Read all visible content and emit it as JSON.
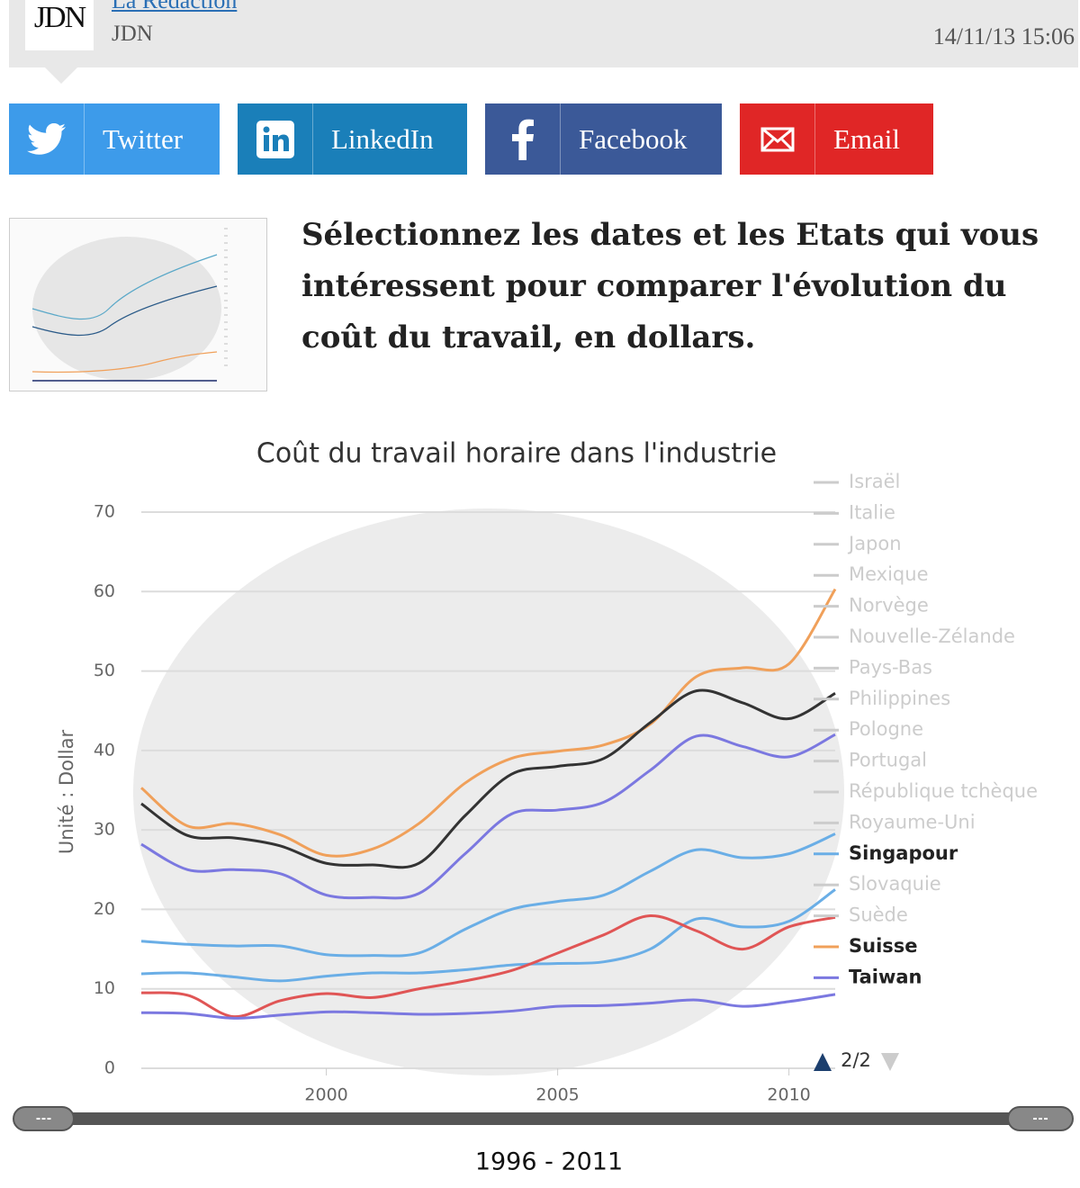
{
  "header": {
    "logo": "JDN",
    "author": "La Rédaction",
    "source": "JDN",
    "date": "14/11/13 15:06"
  },
  "share_buttons": [
    "Twitter",
    "LinkedIn",
    "Facebook",
    "Email"
  ],
  "intro": "Sélectionnez les dates et les Etats qui vous intéressent pour comparer l'évolution du coût du travail, en dollars.",
  "chart_data": {
    "type": "line",
    "title": "Coût du travail horaire dans l'industrie",
    "y_label": "Unité : Dollar",
    "x": [
      1996,
      1997,
      1998,
      1999,
      2000,
      2001,
      2002,
      2003,
      2004,
      2005,
      2006,
      2007,
      2008,
      2009,
      2010,
      2011
    ],
    "series": [
      {
        "color": "#f0a05a",
        "values": [
          35.3,
          30.5,
          30.8,
          29.4,
          26.8,
          27.6,
          30.8,
          35.9,
          39.0,
          39.9,
          40.7,
          43.3,
          49.3,
          50.4,
          50.9,
          60.3
        ]
      },
      {
        "color": "#333333",
        "values": [
          33.3,
          29.3,
          29.0,
          28.0,
          25.8,
          25.6,
          25.8,
          31.8,
          37.0,
          38.0,
          39.0,
          43.5,
          47.5,
          46.0,
          44.0,
          47.2
        ]
      },
      {
        "color": "#7b78e0",
        "values": [
          28.2,
          25.0,
          25.0,
          24.5,
          21.8,
          21.5,
          22.0,
          27.0,
          32.0,
          32.5,
          33.5,
          37.5,
          41.8,
          40.5,
          39.2,
          42.0
        ]
      },
      {
        "color": "#6aaee6",
        "values": [
          16.0,
          15.6,
          15.4,
          15.4,
          14.3,
          14.2,
          14.5,
          17.5,
          20.0,
          21.0,
          21.8,
          24.8,
          27.5,
          26.5,
          27.0,
          29.5
        ]
      },
      {
        "color": "#6aaee6",
        "values": [
          11.9,
          12.0,
          11.5,
          11.0,
          11.6,
          12.0,
          12.0,
          12.4,
          13.0,
          13.2,
          13.4,
          15.0,
          18.8,
          17.8,
          18.5,
          22.5
        ]
      },
      {
        "color": "#e05555",
        "values": [
          9.5,
          9.2,
          6.5,
          8.5,
          9.4,
          8.9,
          10.0,
          11.0,
          12.3,
          14.5,
          16.8,
          19.2,
          17.3,
          15.0,
          17.8,
          19.0
        ]
      },
      {
        "color": "#7b78e0",
        "values": [
          7.0,
          6.9,
          6.3,
          6.7,
          7.1,
          7.0,
          6.8,
          6.9,
          7.2,
          7.8,
          7.9,
          8.2,
          8.6,
          7.8,
          8.4,
          9.3
        ]
      }
    ],
    "xlim": [
      1996,
      2011
    ],
    "xticks": [
      2000,
      2005,
      2010
    ],
    "ylim": [
      0,
      70
    ],
    "yticks": [
      0,
      10,
      20,
      30,
      40,
      50,
      60,
      70
    ],
    "grid": true,
    "legend": [
      {
        "name": "Israël",
        "color": "#cccccc",
        "active": false
      },
      {
        "name": "Italie",
        "color": "#cccccc",
        "active": false
      },
      {
        "name": "Japon",
        "color": "#cccccc",
        "active": false
      },
      {
        "name": "Mexique",
        "color": "#cccccc",
        "active": false
      },
      {
        "name": "Norvège",
        "color": "#cccccc",
        "active": false
      },
      {
        "name": "Nouvelle-Zélande",
        "color": "#cccccc",
        "active": false
      },
      {
        "name": "Pays-Bas",
        "color": "#cccccc",
        "active": false
      },
      {
        "name": "Philippines",
        "color": "#cccccc",
        "active": false
      },
      {
        "name": "Pologne",
        "color": "#cccccc",
        "active": false
      },
      {
        "name": "Portugal",
        "color": "#cccccc",
        "active": false
      },
      {
        "name": "République tchèque",
        "color": "#cccccc",
        "active": false
      },
      {
        "name": "Royaume-Uni",
        "color": "#cccccc",
        "active": false
      },
      {
        "name": "Singapour",
        "color": "#6aaee6",
        "active": true
      },
      {
        "name": "Slovaquie",
        "color": "#cccccc",
        "active": false
      },
      {
        "name": "Suède",
        "color": "#cccccc",
        "active": false
      },
      {
        "name": "Suisse",
        "color": "#f0a05a",
        "active": true
      },
      {
        "name": "Taiwan",
        "color": "#7b78e0",
        "active": true
      }
    ],
    "legend_page": "2/2",
    "range_label": "1996 - 2011"
  }
}
